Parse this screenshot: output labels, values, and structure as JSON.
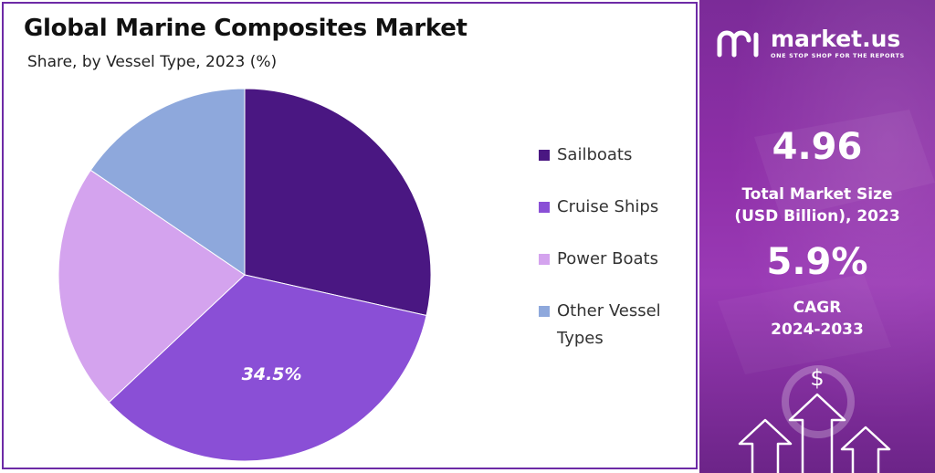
{
  "chart_data": {
    "type": "pie",
    "title": "Global Marine Composites Market",
    "subtitle": "Share, by Vessel Type, 2023 (%)",
    "categories": [
      "Sailboats",
      "Cruise Ships",
      "Power Boats",
      "Other Vessel Types"
    ],
    "values": [
      28.5,
      34.5,
      21.5,
      15.5
    ],
    "data_labels": [
      "",
      "34.5%",
      "",
      ""
    ],
    "colors": [
      "#4a1782",
      "#8a4fd6",
      "#d4a3ee",
      "#8ea8dc"
    ],
    "legend_position": "right"
  },
  "legend": {
    "items": [
      {
        "label": "Sailboats",
        "color": "#4a1782"
      },
      {
        "label": "Cruise Ships",
        "color": "#8a4fd6"
      },
      {
        "label": "Power Boats",
        "color": "#d4a3ee"
      },
      {
        "label": "Other Vessel Types",
        "color": "#8ea8dc"
      }
    ]
  },
  "sidebar": {
    "brand_name": "market.us",
    "brand_tagline": "ONE STOP SHOP FOR THE REPORTS",
    "market_size_value": "4.96",
    "market_size_label_line1": "Total Market Size",
    "market_size_label_line2": "(USD Billion), 2023",
    "cagr_value": "5.9%",
    "cagr_label_line1": "CAGR",
    "cagr_label_line2": "2024-2033",
    "dollar_symbol": "$",
    "icons": [
      "market-us-logo-icon",
      "dollar-icon",
      "arrow-up-icon"
    ]
  }
}
